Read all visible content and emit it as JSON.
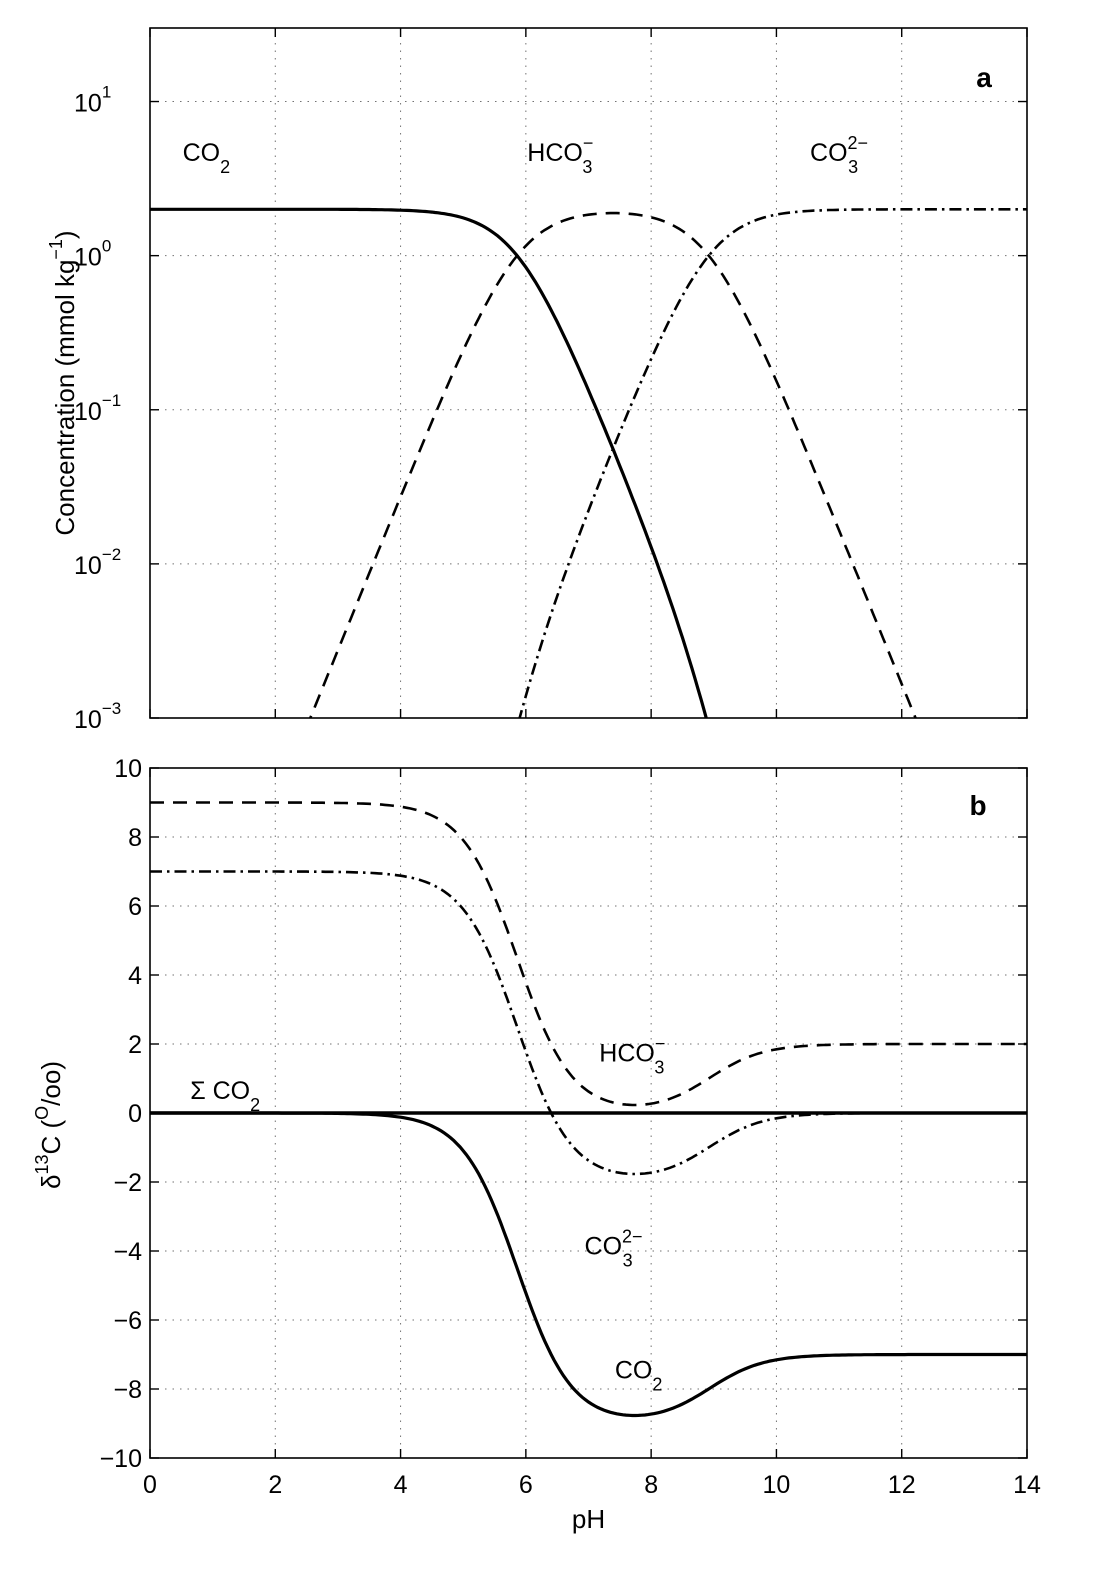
{
  "chart_data": [
    {
      "panel": "a",
      "type": "line",
      "xlabel": "",
      "ylabel": "Concentration (mmol kg",
      "ylabel_sup": "−1",
      "ylabel_close": ")",
      "yscale": "log",
      "xlim": [
        0,
        14
      ],
      "ylim": [
        0.001,
        30
      ],
      "x_ticks": [
        0,
        2,
        4,
        6,
        8,
        10,
        12,
        14
      ],
      "y_ticks": [
        {
          "value": 0.001,
          "base": "10",
          "exp": "−3"
        },
        {
          "value": 0.01,
          "base": "10",
          "exp": "−2"
        },
        {
          "value": 0.1,
          "base": "10",
          "exp": "−1"
        },
        {
          "value": 1,
          "base": "10",
          "exp": "0"
        },
        {
          "value": 10,
          "base": "10",
          "exp": "1"
        }
      ],
      "grid": true,
      "pK1": 5.86,
      "pK2": 8.92,
      "DIC": 2.0,
      "x": [
        0,
        0.25,
        0.5,
        0.75,
        1,
        1.25,
        1.5,
        1.75,
        2,
        2.25,
        2.5,
        2.75,
        3,
        3.25,
        3.5,
        3.75,
        4,
        4.25,
        4.5,
        4.75,
        5,
        5.25,
        5.5,
        5.75,
        6,
        6.25,
        6.5,
        6.75,
        7,
        7.25,
        7.5,
        7.75,
        8,
        8.25,
        8.5,
        8.75,
        9,
        9.25,
        9.5,
        9.75,
        10,
        10.25,
        10.5,
        10.75,
        11,
        11.25,
        11.5,
        11.75,
        12,
        12.25,
        12.5,
        12.75,
        13,
        13.25,
        13.5,
        13.75,
        14
      ],
      "series": [
        {
          "key": "CO2",
          "style": "solid"
        },
        {
          "key": "HCO3",
          "style": "dashed"
        },
        {
          "key": "CO3",
          "style": "dashdot"
        }
      ],
      "annotations": [
        {
          "main": "CO",
          "sub": "2",
          "sup": "",
          "x": 0.9,
          "y": 4.1
        },
        {
          "main": "HCO",
          "sub": "3",
          "sup": "−",
          "x": 6.55,
          "y": 4.1
        },
        {
          "main": "CO",
          "sub": "3",
          "sup": "2−",
          "x": 11.0,
          "y": 4.1
        }
      ],
      "letter": "a"
    },
    {
      "panel": "b",
      "type": "line",
      "xlabel": "pH",
      "ylabel_delta": "δ",
      "ylabel_sup": "13",
      "ylabel_mid": "C (",
      "ylabel_osup": "O",
      "ylabel_tail": "/oo)",
      "xlim": [
        0,
        14
      ],
      "ylim": [
        -10,
        10
      ],
      "x_ticks": [
        0,
        2,
        4,
        6,
        8,
        10,
        12,
        14
      ],
      "y_ticks": [
        -10,
        -8,
        -6,
        -4,
        -2,
        0,
        2,
        4,
        6,
        8,
        10
      ],
      "x_tick_labels": [
        "0",
        "2",
        "4",
        "6",
        "8",
        "10",
        "12",
        "14"
      ],
      "y_tick_labels": [
        "−10",
        "−8",
        "−6",
        "−4",
        "−2",
        "0",
        "2",
        "4",
        "6",
        "8",
        "10"
      ],
      "grid": true,
      "enrichment_co2_vs_hco3": -9.0,
      "enrichment_co3_vs_hco3": -2.0,
      "sum_co2_value": 0,
      "series": [
        {
          "key": "SumCO2",
          "style": "solid-thick"
        },
        {
          "key": "CO2",
          "style": "solid"
        },
        {
          "key": "HCO3",
          "style": "dashed"
        },
        {
          "key": "CO3",
          "style": "dashdot"
        }
      ],
      "annotations": [
        {
          "main": "Σ CO",
          "sub": "2",
          "sup": "",
          "x": 1.2,
          "y": 0.4
        },
        {
          "main": "HCO",
          "sub": "3",
          "sup": "−",
          "x": 7.7,
          "y": 1.5
        },
        {
          "main": "CO",
          "sub": "3",
          "sup": "2−",
          "x": 7.4,
          "y": -4.1
        },
        {
          "main": "CO",
          "sub": "2",
          "sup": "",
          "x": 7.8,
          "y": -7.7
        }
      ],
      "letter": "b"
    }
  ]
}
